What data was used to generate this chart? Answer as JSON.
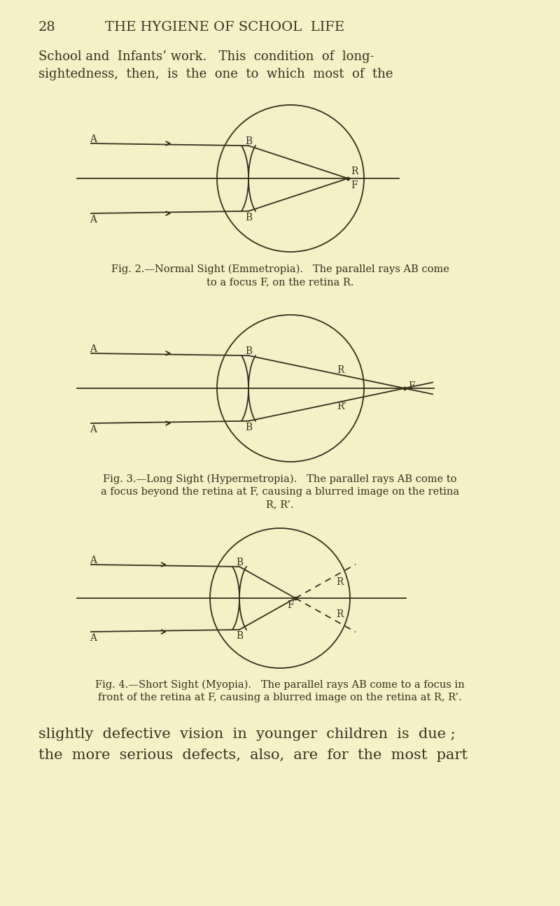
{
  "bg_color": "#f5f0c8",
  "text_color": "#3a2e1e",
  "line_color": "#3a2e1e",
  "header_num": "28",
  "header_title": "THE HYGIENE OF SCHOOL  LIFE",
  "para1_line1": "School and  Infants’ work.   This  condition  of  long-",
  "para1_line2": "sightedness,  then,  is  the  one  to  which  most  of  the",
  "fig2_caption_line1": "Fig. 2.—Normal Sight (Emmetropia).   The parallel rays AB come",
  "fig2_caption_line2": "to a focus F, on the retina R.",
  "fig3_caption_line1": "Fig. 3.—Long Sight (Hypermetropia).   The parallel rays AB come to",
  "fig3_caption_line2": "a focus beyond the retina at F, causing a blurred image on the retina",
  "fig3_caption_line3": "R, R’.",
  "fig4_caption_line1": "Fig. 4.—Short Sight (Myopia).   The parallel rays AB come to a focus in",
  "fig4_caption_line2": "front of the retina at F, causing a blurred image on the retina at R, R’.",
  "para2_line1": "slightly  defective  vision  in  younger  children  is  due ;",
  "para2_line2": "the  more  serious  defects,  also,  are  for  the  most  part"
}
